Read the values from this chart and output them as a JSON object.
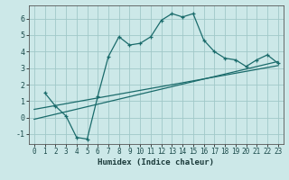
{
  "xlabel": "Humidex (Indice chaleur)",
  "bg_color": "#cce8e8",
  "line_color": "#1a6b6b",
  "grid_color": "#a0c8c8",
  "xlim": [
    -0.5,
    23.5
  ],
  "ylim": [
    -1.6,
    6.8
  ],
  "yticks": [
    -1,
    0,
    1,
    2,
    3,
    4,
    5,
    6
  ],
  "xticks": [
    0,
    1,
    2,
    3,
    4,
    5,
    6,
    7,
    8,
    9,
    10,
    11,
    12,
    13,
    14,
    15,
    16,
    17,
    18,
    19,
    20,
    21,
    22,
    23
  ],
  "curve1_x": [
    1,
    2,
    3,
    4,
    5,
    6,
    7,
    8,
    9,
    10,
    11,
    12,
    13,
    14,
    15,
    16,
    17,
    18,
    19,
    20,
    21,
    22,
    23
  ],
  "curve1_y": [
    1.5,
    0.7,
    0.1,
    -1.2,
    -1.3,
    1.3,
    3.7,
    4.9,
    4.4,
    4.5,
    4.9,
    5.9,
    6.3,
    6.1,
    6.3,
    4.7,
    4.0,
    3.6,
    3.5,
    3.1,
    3.5,
    3.8,
    3.3
  ],
  "curve2_x": [
    0,
    23
  ],
  "curve2_y": [
    -0.1,
    3.4
  ],
  "curve3_x": [
    0,
    23
  ],
  "curve3_y": [
    0.5,
    3.15
  ]
}
